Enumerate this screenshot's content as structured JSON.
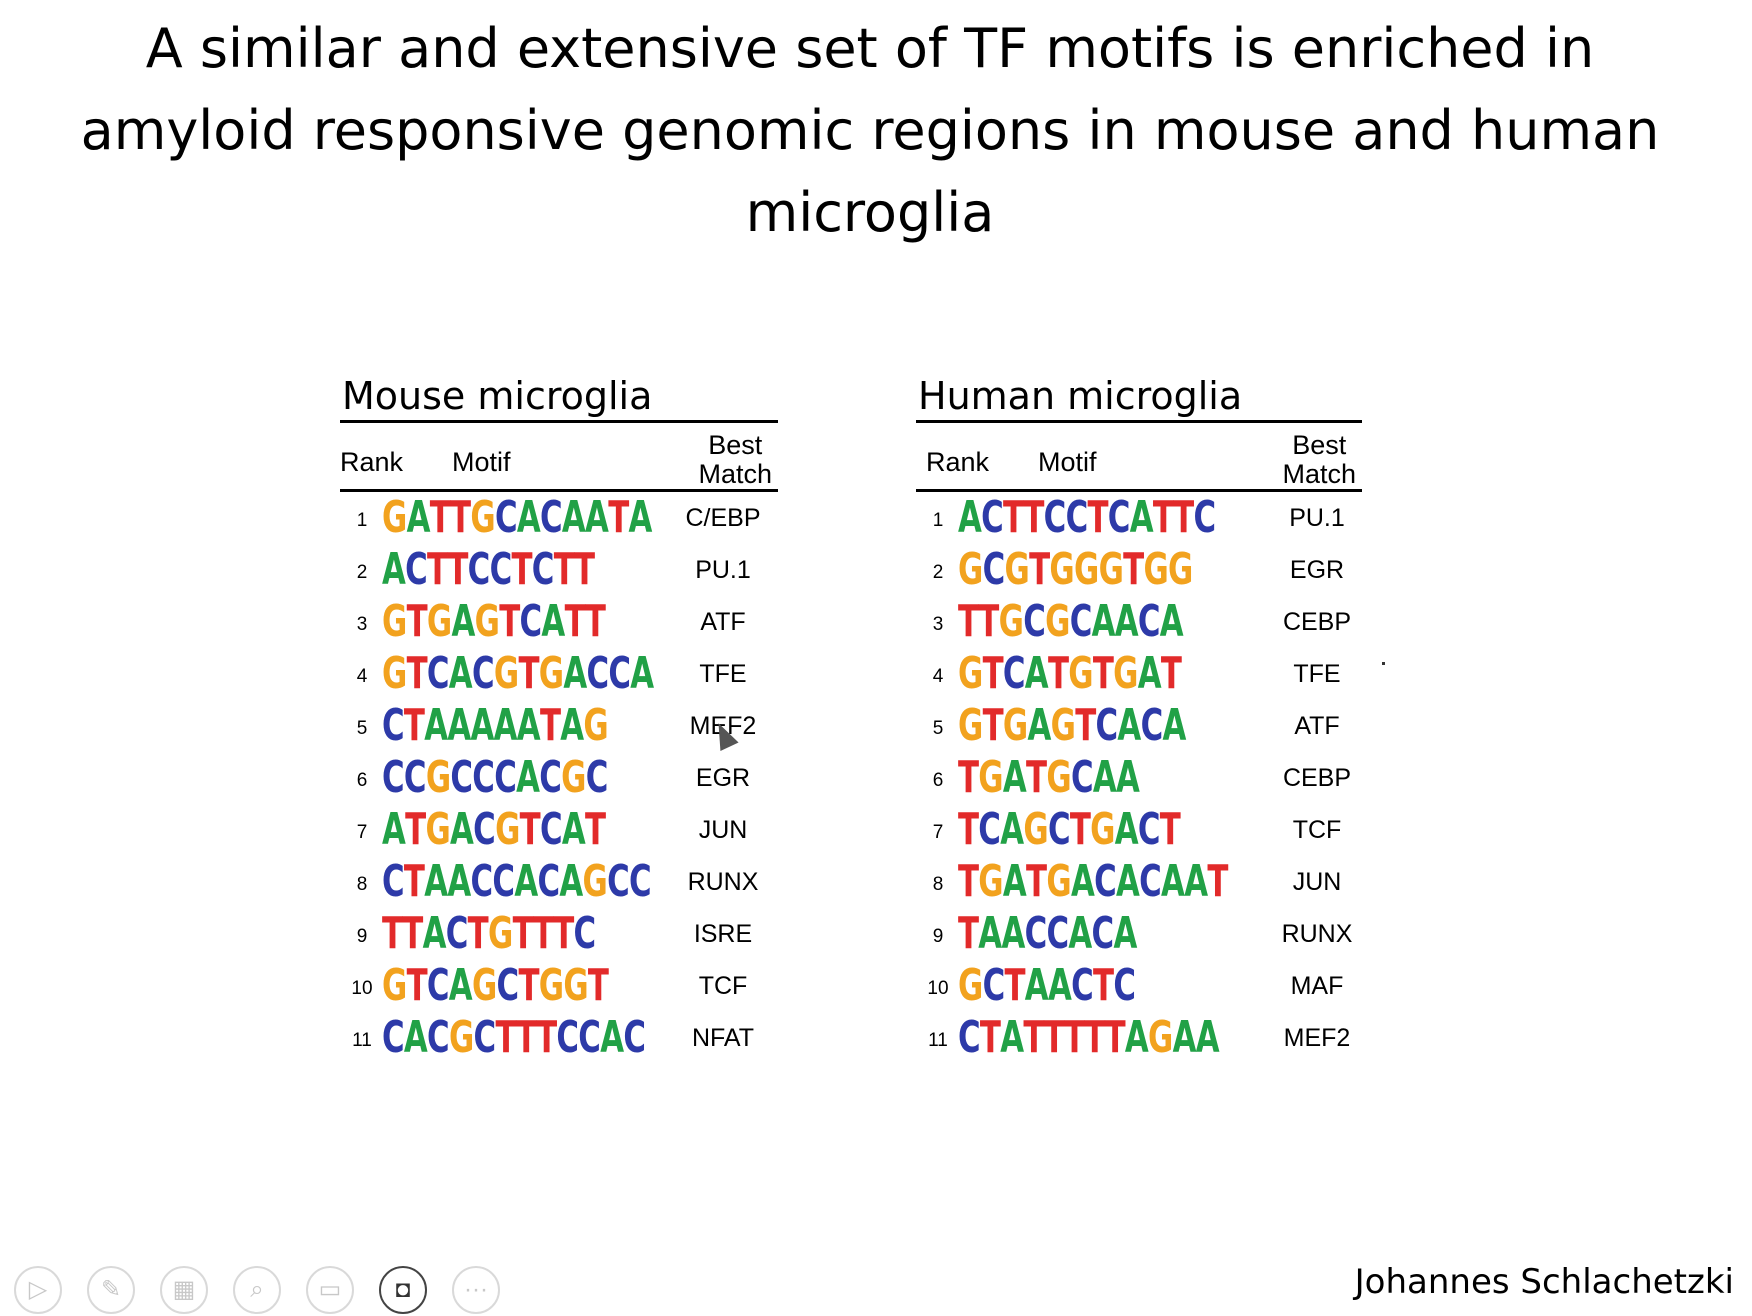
{
  "title": {
    "line1": "A similar and extensive set of TF motifs is enriched in",
    "line2": "amyloid responsive genomic regions in mouse and human",
    "line3": "microglia"
  },
  "columns": {
    "rank": "Rank",
    "motif": "Motif",
    "best_line1": "Best",
    "best_line2": "Match"
  },
  "mouse": {
    "title": "Mouse microglia",
    "rows": [
      {
        "rank": "1",
        "motif": "GATTGCACAATA",
        "match": "C/EBP"
      },
      {
        "rank": "2",
        "motif": "ACTTCCTCTT",
        "match": "PU.1"
      },
      {
        "rank": "3",
        "motif": "GTGAGTCATT",
        "match": "ATF"
      },
      {
        "rank": "4",
        "motif": "GTCACGTGACCA",
        "match": "TFE"
      },
      {
        "rank": "5",
        "motif": "CTAAAAATAG",
        "match": "MEF2"
      },
      {
        "rank": "6",
        "motif": "CCGCCCACGC",
        "match": "EGR"
      },
      {
        "rank": "7",
        "motif": "ATGACGTCAT",
        "match": "JUN"
      },
      {
        "rank": "8",
        "motif": "CTAACCACAGCC",
        "match": "RUNX"
      },
      {
        "rank": "9",
        "motif": "TTACTGTTTC",
        "match": "ISRE"
      },
      {
        "rank": "10",
        "motif": "GTCAGCTGGT",
        "match": "TCF"
      },
      {
        "rank": "11",
        "motif": "CACGCTTTCCAC",
        "match": "NFAT"
      }
    ]
  },
  "human": {
    "title": "Human microglia",
    "rows": [
      {
        "rank": "1",
        "motif": "ACTTCCTCATTC",
        "match": "PU.1"
      },
      {
        "rank": "2",
        "motif": "GCGTGGGTGG",
        "match": "EGR"
      },
      {
        "rank": "3",
        "motif": "TTGCGCAACA",
        "match": "CEBP"
      },
      {
        "rank": "4",
        "motif": "GTCATGTGAT",
        "match": "TFE"
      },
      {
        "rank": "5",
        "motif": "GTGAGTCACA",
        "match": "ATF"
      },
      {
        "rank": "6",
        "motif": "TGATGCAA",
        "match": "CEBP"
      },
      {
        "rank": "7",
        "motif": "TCAGCTGACT",
        "match": "TCF"
      },
      {
        "rank": "8",
        "motif": "TGATGACACAAT",
        "match": "JUN"
      },
      {
        "rank": "9",
        "motif": "TAACCACA",
        "match": "RUNX"
      },
      {
        "rank": "10",
        "motif": "GCTAACTC",
        "match": "MAF"
      },
      {
        "rank": "11",
        "motif": "CTATTTTTAGAA",
        "match": "MEF2"
      }
    ]
  },
  "author": "Johannes Schlachetzki",
  "toolbar": [
    {
      "name": "play-icon",
      "glyph": "▷"
    },
    {
      "name": "pen-icon",
      "glyph": "✎"
    },
    {
      "name": "slides-grid-icon",
      "glyph": "▦"
    },
    {
      "name": "zoom-icon",
      "glyph": "⌕"
    },
    {
      "name": "subtitles-icon",
      "glyph": "▭"
    },
    {
      "name": "camera-icon",
      "glyph": "◘"
    },
    {
      "name": "more-icon",
      "glyph": "···"
    }
  ],
  "colors": {
    "A": "#21a146",
    "C": "#2d3aa8",
    "G": "#f2a21e",
    "T": "#e22a2a"
  }
}
